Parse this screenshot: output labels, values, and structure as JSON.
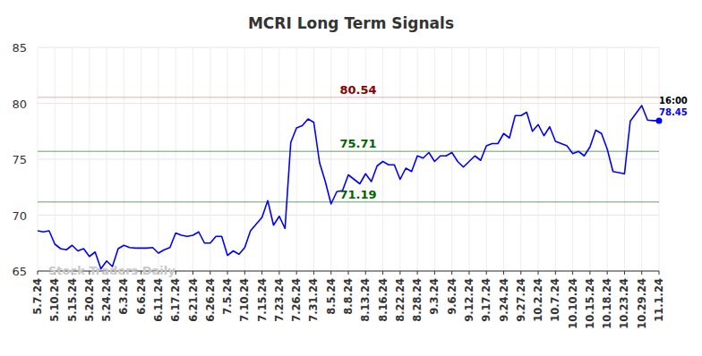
{
  "chart_data": {
    "type": "line",
    "title": "MCRI Long Term Signals",
    "watermark": "Stock Traders Daily",
    "end_annotation": "16:00",
    "categories": [
      "5.7.24",
      null,
      null,
      "5.10.24",
      null,
      null,
      "5.15.24",
      null,
      null,
      "5.20.24",
      null,
      null,
      "5.24.24",
      null,
      null,
      "6.3.24",
      null,
      null,
      "6.6.24",
      null,
      null,
      "6.11.24",
      null,
      null,
      "6.17.24",
      null,
      null,
      "6.21.24",
      null,
      null,
      "6.26.24",
      null,
      null,
      "7.5.24",
      null,
      null,
      "7.10.24",
      null,
      null,
      "7.15.24",
      null,
      null,
      "7.23.24",
      null,
      null,
      "7.26.24",
      null,
      null,
      "7.31.24",
      null,
      null,
      "8.5.24",
      null,
      null,
      "8.8.24",
      null,
      null,
      "8.13.24",
      null,
      null,
      "8.16.24",
      null,
      null,
      "8.22.24",
      null,
      null,
      "8.28.24",
      null,
      null,
      "9.3.24",
      null,
      null,
      "9.6.24",
      null,
      null,
      "9.12.24",
      null,
      null,
      "9.17.24",
      null,
      null,
      "9.24.24",
      null,
      null,
      "9.27.24",
      null,
      null,
      "10.2.24",
      null,
      null,
      "10.7.24",
      null,
      null,
      "10.10.24",
      null,
      null,
      "10.15.24",
      null,
      null,
      "10.18.24",
      null,
      null,
      "10.23.24",
      null,
      null,
      "10.29.24",
      null,
      null,
      "11.1.24"
    ],
    "series": [
      {
        "name": "MCRI",
        "color": "#0000ff",
        "values": [
          68.6,
          68.5,
          68.6,
          67.4,
          67.0,
          66.9,
          67.3,
          66.8,
          67.0,
          66.3,
          66.7,
          65.2,
          65.9,
          65.4,
          67.0,
          67.3,
          67.1,
          67.05,
          67.05,
          67.05,
          67.1,
          66.6,
          66.9,
          67.1,
          68.4,
          68.2,
          68.1,
          68.2,
          68.5,
          67.5,
          67.5,
          68.1,
          68.1,
          66.4,
          66.8,
          66.5,
          67.1,
          68.6,
          69.2,
          69.8,
          71.3,
          69.1,
          69.9,
          68.8,
          76.5,
          77.8,
          78.0,
          78.6,
          78.3,
          74.7,
          73.0,
          71.0,
          72.1,
          72.2,
          73.6,
          73.2,
          72.8,
          73.7,
          73.0,
          74.4,
          74.8,
          74.5,
          74.5,
          73.2,
          74.2,
          73.9,
          75.3,
          75.1,
          75.6,
          74.8,
          75.3,
          75.3,
          75.6,
          74.8,
          74.3,
          74.8,
          75.3,
          74.9,
          76.2,
          76.4,
          76.4,
          77.3,
          76.9,
          78.9,
          78.9,
          79.2,
          77.5,
          78.1,
          77.1,
          77.9,
          76.6,
          76.4,
          76.2,
          75.5,
          75.7,
          75.3,
          76.1,
          77.6,
          77.3,
          75.9,
          73.9,
          73.8,
          73.7,
          78.4,
          79.1,
          79.8,
          78.5,
          78.45,
          78.45
        ]
      }
    ],
    "annotations": [
      {
        "value": 80.54,
        "label": "80.54",
        "color": "#8b0000"
      },
      {
        "value": 75.71,
        "label": "75.71",
        "color": "#006400"
      },
      {
        "value": 71.19,
        "label": "71.19",
        "color": "#006400"
      }
    ],
    "ylim": [
      65,
      85
    ],
    "yticks": [
      65,
      70,
      75,
      80,
      85
    ],
    "grid": true
  }
}
